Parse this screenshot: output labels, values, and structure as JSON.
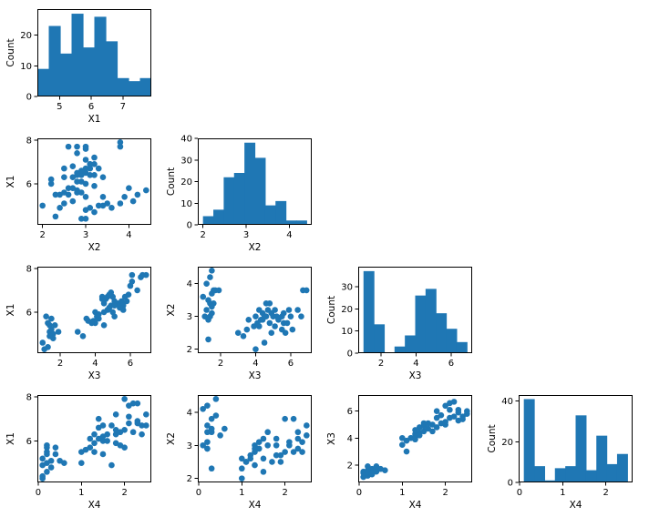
{
  "figure": {
    "marker_color": "#1f77b4"
  },
  "chart_data": [
    {
      "type": "bar",
      "id": "hist-x1",
      "xlabel": "X1",
      "ylabel": "Count",
      "xlim": [
        4.3,
        7.9
      ],
      "ylim": [
        0,
        28.5
      ],
      "xticks": [
        5,
        6,
        7,
        8
      ],
      "yticks": [
        0,
        10,
        20
      ],
      "bin_edges": [
        4.3,
        4.66,
        5.02,
        5.38,
        5.74,
        6.1,
        6.46,
        6.82,
        7.18,
        7.54,
        7.9
      ],
      "values": [
        9,
        23,
        14,
        27,
        16,
        26,
        18,
        6,
        5,
        6
      ]
    },
    {
      "type": "scatter",
      "id": "scatter-x1-x2",
      "xlabel": "X2",
      "ylabel": "X1",
      "xlim": [
        1.88,
        4.52
      ],
      "ylim": [
        4.12,
        8.08
      ],
      "xticks": [
        2,
        3,
        4
      ],
      "yticks": [
        6,
        8
      ],
      "x": [
        2.0,
        2.2,
        2.3,
        2.4,
        2.5,
        2.5,
        2.6,
        2.7,
        2.7,
        2.8,
        2.8,
        2.9,
        2.9,
        3.0,
        3.0,
        3.0,
        3.0,
        3.1,
        3.1,
        3.2,
        3.2,
        3.3,
        3.4,
        3.4,
        3.5,
        3.6,
        3.8,
        3.9,
        4.0,
        4.1,
        4.2,
        4.4,
        2.2,
        2.3,
        2.4,
        2.5,
        2.5,
        2.6,
        2.7,
        2.7,
        2.8,
        2.8,
        2.8,
        2.9,
        2.9,
        3.0,
        3.0,
        3.0,
        3.1,
        3.1,
        3.2,
        3.2,
        3.3,
        3.4,
        2.6,
        2.8,
        3.0,
        3.8,
        3.8,
        3.0,
        2.9,
        2.8,
        3.2,
        3.1
      ],
      "y": [
        5.0,
        6.0,
        4.5,
        4.9,
        5.1,
        6.3,
        5.5,
        5.2,
        6.8,
        5.7,
        7.7,
        4.4,
        6.1,
        4.8,
        5.4,
        6.5,
        7.6,
        4.9,
        6.7,
        4.7,
        7.2,
        5.0,
        5.0,
        6.3,
        5.1,
        4.9,
        7.9,
        5.4,
        5.8,
        5.2,
        5.5,
        5.7,
        6.2,
        5.5,
        5.5,
        5.6,
        6.7,
        5.8,
        5.8,
        6.3,
        5.6,
        6.1,
        6.4,
        5.6,
        6.4,
        6.0,
        6.7,
        7.1,
        6.4,
        6.9,
        6.4,
        6.9,
        6.7,
        5.4,
        7.7,
        7.4,
        7.7,
        7.7,
        5.1,
        4.4,
        6.6,
        6.5,
        5.9,
        6.9
      ]
    },
    {
      "type": "bar",
      "id": "hist-x2",
      "xlabel": "X2",
      "ylabel": "Count",
      "xlim": [
        1.88,
        4.52
      ],
      "ylim": [
        0,
        40
      ],
      "xticks": [
        2,
        3,
        4
      ],
      "yticks": [
        0,
        10,
        20,
        30,
        40
      ],
      "bin_edges": [
        2.0,
        2.24,
        2.48,
        2.72,
        2.96,
        3.2,
        3.44,
        3.68,
        3.92,
        4.16,
        4.4
      ],
      "values": [
        4,
        7,
        22,
        24,
        38,
        31,
        9,
        11,
        2,
        2
      ]
    },
    {
      "type": "scatter",
      "id": "scatter-x1-x3",
      "xlabel": "X3",
      "ylabel": "X1",
      "xlim": [
        0.7,
        7.2
      ],
      "ylim": [
        4.12,
        8.08
      ],
      "xticks": [
        2,
        4,
        6
      ],
      "yticks": [
        6,
        8
      ],
      "x": [
        1.0,
        1.1,
        1.2,
        1.3,
        1.3,
        1.4,
        1.4,
        1.5,
        1.5,
        1.5,
        1.6,
        1.6,
        1.7,
        1.9,
        1.4,
        1.3,
        3.0,
        3.3,
        3.5,
        3.6,
        3.9,
        4.0,
        4.0,
        4.1,
        4.2,
        4.4,
        4.5,
        4.5,
        4.6,
        4.7,
        4.8,
        4.9,
        5.0,
        5.1,
        5.1,
        5.3,
        5.5,
        5.6,
        5.6,
        5.8,
        5.9,
        6.0,
        6.1,
        6.4,
        6.6,
        6.7,
        6.9,
        4.4,
        4.7,
        5.0,
        5.6,
        5.1,
        4.9,
        4.5,
        4.8,
        5.7,
        6.1,
        4.2,
        3.8,
        5.4
      ],
      "y": [
        4.6,
        4.3,
        5.8,
        4.4,
        5.5,
        5.1,
        5.4,
        4.9,
        5.2,
        5.7,
        4.8,
        5.0,
        5.4,
        5.1,
        4.9,
        5.5,
        5.1,
        4.9,
        5.7,
        5.6,
        5.6,
        5.5,
        6.0,
        5.8,
        5.7,
        6.6,
        5.4,
        6.0,
        6.6,
        6.1,
        6.2,
        6.3,
        6.0,
        5.8,
        6.5,
        6.4,
        6.5,
        6.1,
        6.4,
        6.5,
        6.8,
        7.2,
        7.4,
        7.0,
        7.6,
        7.7,
        7.7,
        6.7,
        6.7,
        6.7,
        6.3,
        6.3,
        6.9,
        6.4,
        6.8,
        6.7,
        7.7,
        5.9,
        5.5,
        6.2
      ]
    },
    {
      "type": "scatter",
      "id": "scatter-x2-x3",
      "xlabel": "X3",
      "ylabel": "X2",
      "xlim": [
        0.7,
        7.2
      ],
      "ylim": [
        1.88,
        4.52
      ],
      "xticks": [
        2,
        4,
        6
      ],
      "yticks": [
        2,
        3,
        4
      ],
      "x": [
        1.0,
        1.1,
        1.2,
        1.2,
        1.3,
        1.3,
        1.4,
        1.4,
        1.4,
        1.5,
        1.5,
        1.5,
        1.6,
        1.6,
        1.7,
        1.9,
        1.3,
        1.5,
        3.0,
        3.3,
        3.5,
        3.6,
        3.9,
        4.0,
        4.0,
        4.1,
        4.2,
        4.3,
        4.4,
        4.5,
        4.5,
        4.6,
        4.7,
        4.8,
        4.9,
        5.0,
        5.1,
        5.1,
        5.3,
        5.5,
        5.6,
        5.7,
        5.8,
        5.9,
        6.0,
        6.1,
        6.4,
        6.6,
        6.7,
        6.9,
        4.4,
        4.6,
        5.2,
        5.5,
        4.9,
        4.2,
        5.6,
        4.8
      ],
      "y": [
        3.6,
        3.0,
        4.0,
        3.2,
        2.3,
        3.5,
        3.0,
        3.4,
        4.2,
        3.1,
        3.7,
        4.4,
        3.4,
        3.8,
        3.8,
        3.8,
        2.9,
        3.3,
        2.5,
        2.4,
        2.6,
        2.9,
        2.7,
        2.0,
        3.0,
        2.8,
        2.7,
        2.9,
        3.1,
        2.2,
        3.0,
        3.0,
        3.2,
        2.8,
        2.5,
        3.0,
        2.7,
        3.2,
        2.9,
        2.6,
        3.1,
        2.5,
        2.8,
        3.2,
        3.0,
        2.6,
        3.2,
        3.0,
        3.8,
        3.8,
        2.9,
        3.4,
        3.0,
        3.0,
        3.1,
        3.2,
        2.8,
        3.4
      ]
    },
    {
      "type": "bar",
      "id": "hist-x3",
      "xlabel": "X3",
      "ylabel": "Count",
      "xlim": [
        0.7,
        7.2
      ],
      "ylim": [
        0,
        39
      ],
      "xticks": [
        2,
        4,
        6
      ],
      "yticks": [
        0,
        10,
        20,
        30
      ],
      "bin_edges": [
        1.0,
        1.59,
        2.18,
        2.77,
        3.36,
        3.95,
        4.54,
        5.13,
        5.72,
        6.31,
        6.9
      ],
      "values": [
        37,
        13,
        0,
        3,
        8,
        26,
        29,
        18,
        11,
        5
      ]
    },
    {
      "type": "scatter",
      "id": "scatter-x1-x4",
      "xlabel": "X4",
      "ylabel": "X1",
      "xlim": [
        -0.02,
        2.62
      ],
      "ylim": [
        4.12,
        8.08
      ],
      "xticks": [
        0,
        1,
        2
      ],
      "yticks": [
        6,
        8
      ],
      "x": [
        0.1,
        0.1,
        0.1,
        0.2,
        0.2,
        0.2,
        0.2,
        0.2,
        0.3,
        0.3,
        0.4,
        0.4,
        0.5,
        0.6,
        0.1,
        0.2,
        1.0,
        1.0,
        1.1,
        1.2,
        1.3,
        1.3,
        1.3,
        1.4,
        1.4,
        1.5,
        1.5,
        1.5,
        1.6,
        1.7,
        1.8,
        1.8,
        1.8,
        1.9,
        2.0,
        2.0,
        2.1,
        2.1,
        2.2,
        2.3,
        2.3,
        2.4,
        2.5,
        2.5,
        1.2,
        1.4,
        1.6,
        1.9,
        2.1,
        2.3,
        2.2,
        2.4,
        1.7,
        1.5,
        2.0,
        1.8
      ],
      "y": [
        4.4,
        4.9,
        5.2,
        4.6,
        5.0,
        5.4,
        5.7,
        5.8,
        4.8,
        5.1,
        5.4,
        5.7,
        5.1,
        5.0,
        4.3,
        5.5,
        5.0,
        5.5,
        5.6,
        5.7,
        5.5,
        5.9,
        6.3,
        6.1,
        6.6,
        5.4,
        6.0,
        6.7,
        6.3,
        6.7,
        5.9,
        6.3,
        7.2,
        5.8,
        6.5,
        7.9,
        6.8,
        7.1,
        6.4,
        6.9,
        7.7,
        6.3,
        6.7,
        7.2,
        6.1,
        7.0,
        6.0,
        6.4,
        7.6,
        6.8,
        7.7,
        6.7,
        4.9,
        6.2,
        5.7,
        6.5
      ]
    },
    {
      "type": "scatter",
      "id": "scatter-x2-x4",
      "xlabel": "X4",
      "ylabel": "X2",
      "xlim": [
        -0.02,
        2.62
      ],
      "ylim": [
        1.88,
        4.52
      ],
      "xticks": [
        0,
        1,
        2
      ],
      "yticks": [
        2,
        3,
        4
      ],
      "x": [
        0.1,
        0.1,
        0.2,
        0.2,
        0.2,
        0.2,
        0.2,
        0.3,
        0.3,
        0.3,
        0.4,
        0.4,
        0.5,
        0.6,
        0.2,
        0.3,
        1.0,
        1.0,
        1.0,
        1.1,
        1.2,
        1.3,
        1.3,
        1.3,
        1.4,
        1.4,
        1.5,
        1.5,
        1.5,
        1.6,
        1.7,
        1.8,
        1.8,
        1.8,
        1.9,
        2.0,
        2.0,
        2.1,
        2.1,
        2.2,
        2.3,
        2.3,
        2.4,
        2.5,
        2.5,
        1.2,
        1.4,
        1.6,
        1.9,
        2.2,
        2.4,
        1.1,
        1.3,
        2.3
      ],
      "y": [
        3.0,
        4.1,
        3.1,
        3.4,
        3.6,
        4.2,
        2.9,
        3.8,
        3.4,
        3.5,
        3.9,
        4.4,
        3.3,
        3.5,
        2.9,
        2.3,
        2.0,
        2.3,
        2.6,
        2.5,
        2.7,
        2.4,
        2.8,
        3.0,
        2.9,
        3.1,
        2.2,
        2.6,
        3.2,
        3.0,
        2.5,
        2.7,
        3.0,
        3.2,
        2.5,
        2.8,
        3.8,
        3.0,
        3.1,
        2.8,
        2.9,
        3.2,
        3.1,
        3.3,
        3.6,
        2.6,
        2.9,
        3.4,
        2.7,
        3.8,
        2.8,
        2.5,
        2.9,
        3.4
      ]
    },
    {
      "type": "scatter",
      "id": "scatter-x3-x4",
      "xlabel": "X4",
      "ylabel": "X3",
      "xlim": [
        -0.02,
        2.62
      ],
      "ylim": [
        0.7,
        7.2
      ],
      "xticks": [
        0,
        1,
        2
      ],
      "yticks": [
        2,
        4,
        6
      ],
      "x": [
        0.1,
        0.1,
        0.2,
        0.2,
        0.2,
        0.2,
        0.3,
        0.3,
        0.4,
        0.4,
        0.5,
        0.6,
        0.1,
        0.2,
        0.3,
        0.4,
        1.0,
        1.0,
        1.1,
        1.2,
        1.3,
        1.3,
        1.3,
        1.4,
        1.4,
        1.5,
        1.5,
        1.5,
        1.6,
        1.7,
        1.8,
        1.8,
        1.9,
        2.0,
        2.0,
        2.1,
        2.1,
        2.2,
        2.3,
        2.3,
        2.4,
        2.5,
        2.5,
        1.2,
        1.4,
        1.6,
        1.8,
        2.0,
        2.2,
        2.3,
        2.4,
        1.1,
        1.3,
        1.7,
        1.9,
        2.1
      ],
      "y": [
        1.1,
        1.5,
        1.2,
        1.4,
        1.6,
        1.9,
        1.3,
        1.7,
        1.5,
        1.7,
        1.7,
        1.6,
        1.4,
        1.5,
        1.4,
        1.9,
        3.5,
        4.0,
        3.8,
        4.0,
        3.9,
        4.3,
        4.6,
        4.4,
        4.8,
        4.5,
        4.9,
        5.1,
        4.7,
        5.0,
        4.8,
        5.5,
        5.1,
        5.0,
        6.4,
        5.5,
        6.6,
        5.6,
        5.3,
        6.1,
        5.6,
        5.8,
        6.0,
        4.0,
        4.2,
        5.1,
        6.0,
        5.2,
        6.7,
        5.9,
        5.4,
        3.0,
        4.1,
        4.5,
        5.7,
        6.1
      ]
    },
    {
      "type": "bar",
      "id": "hist-x4",
      "xlabel": "X4",
      "ylabel": "Count",
      "xlim": [
        -0.02,
        2.62
      ],
      "ylim": [
        0,
        43
      ],
      "xticks": [
        0,
        1,
        2
      ],
      "yticks": [
        0,
        20,
        40
      ],
      "bin_edges": [
        0.1,
        0.34,
        0.58,
        0.82,
        1.06,
        1.3,
        1.54,
        1.78,
        2.02,
        2.26,
        2.5
      ],
      "values": [
        41,
        8,
        1,
        7,
        8,
        33,
        6,
        23,
        9,
        14
      ]
    }
  ]
}
